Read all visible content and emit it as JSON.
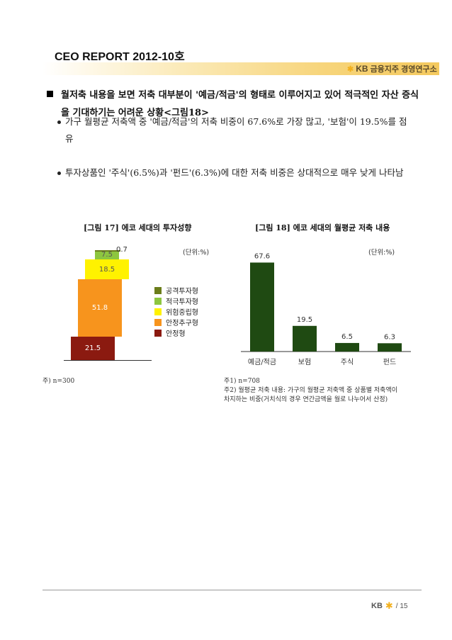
{
  "header": {
    "title": "CEO REPORT 2012-10호",
    "brand": "KB금융지주 경영연구소",
    "brand_mark": "KB",
    "brand_star": "✱"
  },
  "body": {
    "lead": "월저축 내용을 보면 저축 대부분이 '예금/적금'의 형태로 이루어지고 있어 적극적인 자산 증식을 기대하기는 어려운 상황<그림18>",
    "bullets": [
      "가구 월평균 저축액 중 '예금/적금'의 저축 비중이 67.6%로 가장 많고, '보험'이 19.5%를 점유",
      "투자상품인 '주식'(6.5%)과 '펀드'(6.3%)에 대한 저축 비중은 상대적으로 매우 낮게 나타남"
    ]
  },
  "chart_data": [
    {
      "type": "bar",
      "subtype": "stacked-waterfall",
      "title": "[그림 17] 에코 세대의 투자성향",
      "unit": "(단위:%)",
      "series": [
        {
          "name": "안정형",
          "value": 21.5,
          "label": "21.5",
          "color": "#8b1a10"
        },
        {
          "name": "안정추구형",
          "value": 51.8,
          "label": "51.8",
          "color": "#f7941d"
        },
        {
          "name": "위험중립형",
          "value": 18.5,
          "label": "18.5",
          "color": "#fff200"
        },
        {
          "name": "적극투자형",
          "value": 7.5,
          "label": "7.5",
          "color": "#8dc63f"
        },
        {
          "name": "공격투자형",
          "value": 0.7,
          "label": "0.7",
          "color": "#6b7d1a"
        }
      ],
      "legend_order": [
        "공격투자형",
        "적극투자형",
        "위험중립형",
        "안정추구형",
        "안정형"
      ],
      "legend_position": "right",
      "note": "주) n=300"
    },
    {
      "type": "bar",
      "title": "[그림 18] 에코 세대의 월평균 저축 내용",
      "unit": "(단위:%)",
      "categories": [
        "예금/적금",
        "보험",
        "주식",
        "펀드"
      ],
      "values": [
        67.6,
        19.5,
        6.5,
        6.3
      ],
      "value_labels": [
        "67.6",
        "19.5",
        "6.5",
        "6.3"
      ],
      "color": "#1f4a12",
      "ylim": [
        0,
        70
      ],
      "notes": [
        "주1) n=708",
        "주2) 월평균 저축 내용: 가구의 월평균 저축액 중 상품별 저축액이",
        "차지하는 비중(거치식의 경우 연간금액을 월로 나누어서 산정)"
      ]
    }
  ],
  "footer": {
    "brand": "KB",
    "star": "✱",
    "page": "/ 15"
  }
}
